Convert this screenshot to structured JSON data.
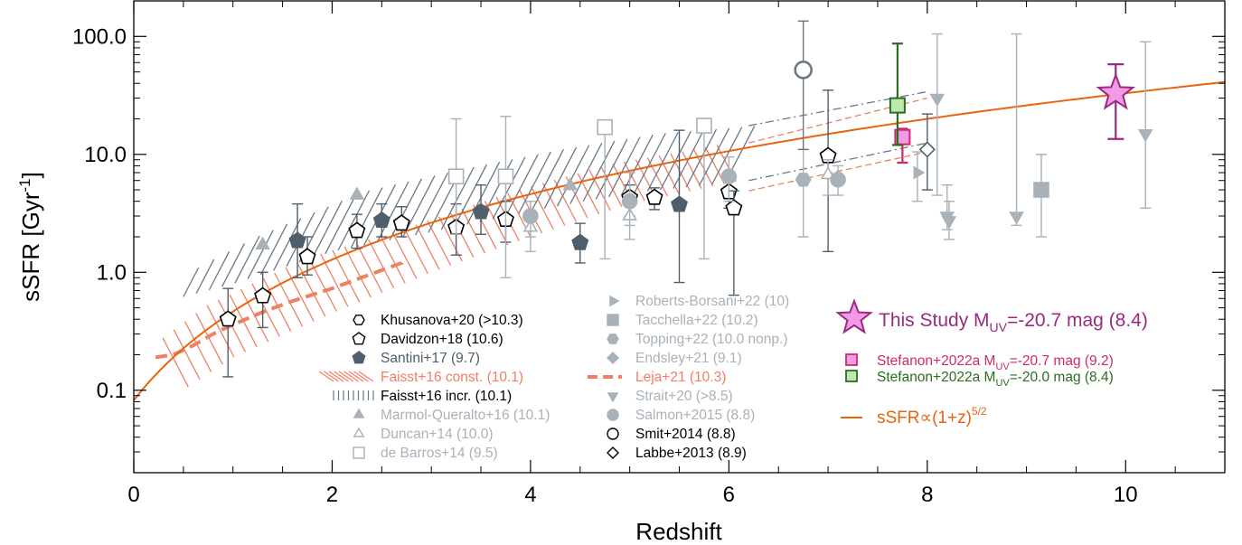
{
  "chart_data": {
    "type": "scatter",
    "xlabel": "Redshift",
    "ylabel": "sSFR [Gyr",
    "ylabel_sup": "-1",
    "ylabel_close": "]",
    "xlim": [
      0,
      11
    ],
    "ylim": [
      0.02,
      200
    ],
    "yscale": "log",
    "x_ticks": [
      "0",
      "2",
      "4",
      "6",
      "8",
      "10"
    ],
    "y_ticks": [
      "0.1",
      "1.0",
      "10.0",
      "100.0"
    ],
    "grid": false,
    "colors": {
      "gray": "#a9b1b9",
      "dark_gray": "#6a7784",
      "slate": "#4f5e6c",
      "orange": "#e8650e",
      "salmon": "#f07f64",
      "purple": "#9b2a7e",
      "pink_fill": "#f19ae6",
      "crimson": "#d12a66",
      "green": "#2b6d1e",
      "light_green": "#bde8b0"
    },
    "model_curve": {
      "label": "sSFR∝(1+z)",
      "sup": "5/2",
      "norm_z10": 33
    },
    "series": [
      {
        "name": "Khusanova+20 (>10.3)",
        "marker": "hexagon",
        "filled": false,
        "color": "#000000",
        "points": []
      },
      {
        "name": "Davidzon+18 (10.6)",
        "marker": "pentagon",
        "filled": false,
        "color": "#000000",
        "errcolor": "#4f5e6c",
        "points": [
          [
            0.95,
            0.4,
            0.13,
            0.73
          ],
          [
            1.3,
            0.63,
            0.34,
            1.0
          ],
          [
            1.75,
            1.35,
            0.95,
            2.0
          ],
          [
            2.25,
            2.25,
            1.6,
            3.1
          ],
          [
            2.7,
            2.6,
            2.0,
            3.6
          ],
          [
            3.25,
            2.4,
            1.4,
            3.8
          ],
          [
            3.75,
            2.8,
            1.8,
            4.0
          ],
          [
            5.0,
            4.3,
            3.0,
            5.5
          ],
          [
            5.25,
            4.3,
            3.4,
            5.2
          ],
          [
            6.0,
            4.8,
            3.5,
            6.3
          ],
          [
            6.05,
            3.5,
            0.64,
            4.9
          ],
          [
            7.0,
            9.7,
            1.5,
            35
          ]
        ]
      },
      {
        "name": "Santini+17 (9.7)",
        "marker": "pentagon",
        "filled": true,
        "color": "#4f5e6c",
        "points": [
          [
            1.65,
            1.85,
            0.9,
            3.8
          ],
          [
            2.5,
            2.75,
            2.0,
            3.8
          ],
          [
            3.5,
            3.25,
            2.1,
            5.5
          ],
          [
            4.5,
            1.78,
            1.2,
            2.6
          ],
          [
            5.5,
            3.75,
            0.82,
            16
          ]
        ]
      },
      {
        "name": "Faisst+16 const. (10.1)",
        "marker": "hatch",
        "color": "#f07f64",
        "points": []
      },
      {
        "name": "Faisst+16 incr. (10.1)",
        "marker": "hatch",
        "color": "#6a7784",
        "points": []
      },
      {
        "name": "Marmol-Queralto+16 (10.1)",
        "marker": "triangle",
        "filled": true,
        "color": "#a9b1b9",
        "points": [
          [
            1.3,
            1.7
          ],
          [
            2.25,
            4.5
          ],
          [
            4.4,
            5.4
          ]
        ]
      },
      {
        "name": "Duncan+14 (10.0)",
        "marker": "triangle",
        "filled": false,
        "color": "#a9b1b9",
        "points": [
          [
            4.0,
            2.4,
            1.5,
            3.3
          ],
          [
            5.0,
            3.0,
            1.9,
            4.2
          ],
          [
            7.0,
            6.7,
            4.5,
            9.0
          ]
        ]
      },
      {
        "name": "de Barros+14 (9.5)",
        "marker": "square",
        "filled": false,
        "color": "#a9b1b9",
        "points": [
          [
            3.25,
            6.5,
            2.1,
            20
          ],
          [
            3.75,
            6.5,
            0.9,
            21
          ],
          [
            4.75,
            17,
            1.3,
            18
          ],
          [
            5.75,
            17.5,
            1.3,
            18.5
          ]
        ]
      },
      {
        "name": "Roberts-Borsani+22 (10)",
        "marker": "triangle-right",
        "filled": true,
        "color": "#a9b1b9",
        "points": [
          [
            7.9,
            7.0,
            4.0,
            10.5
          ]
        ]
      },
      {
        "name": "Tacchella+22 (10.2)",
        "marker": "square",
        "filled": true,
        "color": "#a9b1b9",
        "points": [
          [
            9.15,
            5.0,
            2.0,
            10
          ]
        ]
      },
      {
        "name": "Topping+22 (10.0 nonp.)",
        "marker": "hexagon",
        "filled": true,
        "color": "#a9b1b9",
        "points": [
          [
            6.75,
            6.1,
            2.0,
            11
          ]
        ]
      },
      {
        "name": "Endsley+21 (9.1)",
        "marker": "diamond",
        "filled": true,
        "color": "#a9b1b9",
        "points": []
      },
      {
        "name": "Leja+21 (10.3)",
        "marker": "dash",
        "color": "#f07f64",
        "points": []
      },
      {
        "name": "Strait+20 (>8.5)",
        "marker": "triangle-down",
        "filled": true,
        "color": "#a9b1b9",
        "points": [
          [
            8.1,
            30,
            4.5,
            105
          ],
          [
            8.2,
            3.0,
            2.3,
            5.5
          ],
          [
            8.22,
            2.75,
            1.9,
            4.0
          ],
          [
            8.9,
            3.0,
            2.5,
            105
          ],
          [
            10.2,
            15,
            3.5,
            90
          ]
        ]
      },
      {
        "name": "Salmon+2015 (8.8)",
        "marker": "circle",
        "filled": true,
        "color": "#a9b1b9",
        "points": [
          [
            4.0,
            3.0,
            2.0,
            4.0
          ],
          [
            5.0,
            4.0,
            2.5,
            7.0
          ],
          [
            6.0,
            6.5,
            4.0,
            9.5
          ],
          [
            7.1,
            6.1,
            4.5,
            8.0
          ]
        ]
      },
      {
        "name": "Smit+2014 (8.8)",
        "marker": "circle",
        "filled": false,
        "color": "#6a7784",
        "points": [
          [
            6.75,
            52,
            11,
            135
          ]
        ]
      },
      {
        "name": "Labbe+2013 (8.9)",
        "marker": "diamond",
        "filled": false,
        "color": "#4f5e6c",
        "points": [
          [
            8.0,
            11,
            5.0,
            22
          ]
        ]
      },
      {
        "name": "This Study M",
        "sub": "UV",
        "tail": "=-20.7 mag (8.4)",
        "marker": "star",
        "filled": true,
        "color": "#9b2a7e",
        "points": [
          [
            9.9,
            33,
            13.5,
            58
          ]
        ]
      },
      {
        "name": "Stefanon+2022a M",
        "sub": "UV",
        "tail": "=-20.7 mag (9.2)",
        "marker": "square",
        "filled": true,
        "color": "#d12a66",
        "points": [
          [
            7.75,
            14,
            8.5,
            16.5
          ]
        ]
      },
      {
        "name": "Stefanon+2022a M",
        "sub": "UV",
        "tail": "=-20.0 mag (8.4)",
        "marker": "square",
        "filled": true,
        "color": "#2b6d1e",
        "points": [
          [
            7.7,
            26,
            12,
            87
          ]
        ]
      }
    ]
  }
}
